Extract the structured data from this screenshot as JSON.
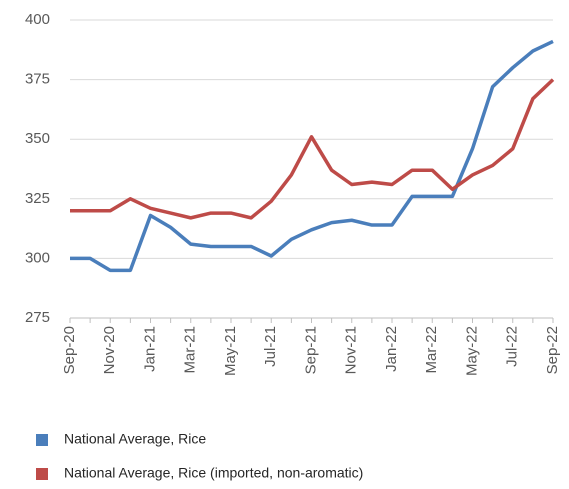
{
  "chart_data": {
    "type": "line",
    "categories": [
      "Sep-20",
      null,
      "Nov-20",
      null,
      "Jan-21",
      null,
      "Mar-21",
      null,
      "May-21",
      null,
      "Jul-21",
      null,
      "Sep-21",
      null,
      "Nov-21",
      null,
      "Jan-22",
      null,
      "Mar-22",
      null,
      "May-22",
      null,
      "Jul-22",
      null,
      "Sep-22"
    ],
    "series": [
      {
        "name": "National Average, Rice",
        "color": "#4a7ebb",
        "values": [
          300,
          300,
          295,
          295,
          318,
          313,
          306,
          305,
          305,
          305,
          301,
          308,
          312,
          315,
          316,
          314,
          314,
          326,
          326,
          326,
          346,
          372,
          380,
          387,
          391
        ]
      },
      {
        "name": "National Average, Rice (imported, non-aromatic)",
        "color": "#be4b48",
        "values": [
          320,
          320,
          320,
          325,
          321,
          319,
          317,
          319,
          319,
          317,
          324,
          335,
          351,
          337,
          331,
          332,
          331,
          337,
          337,
          329,
          335,
          339,
          346,
          367,
          375
        ]
      }
    ],
    "ylim": [
      275,
      400
    ],
    "yticks": [
      275,
      300,
      325,
      350,
      375,
      400
    ],
    "grid": true
  }
}
